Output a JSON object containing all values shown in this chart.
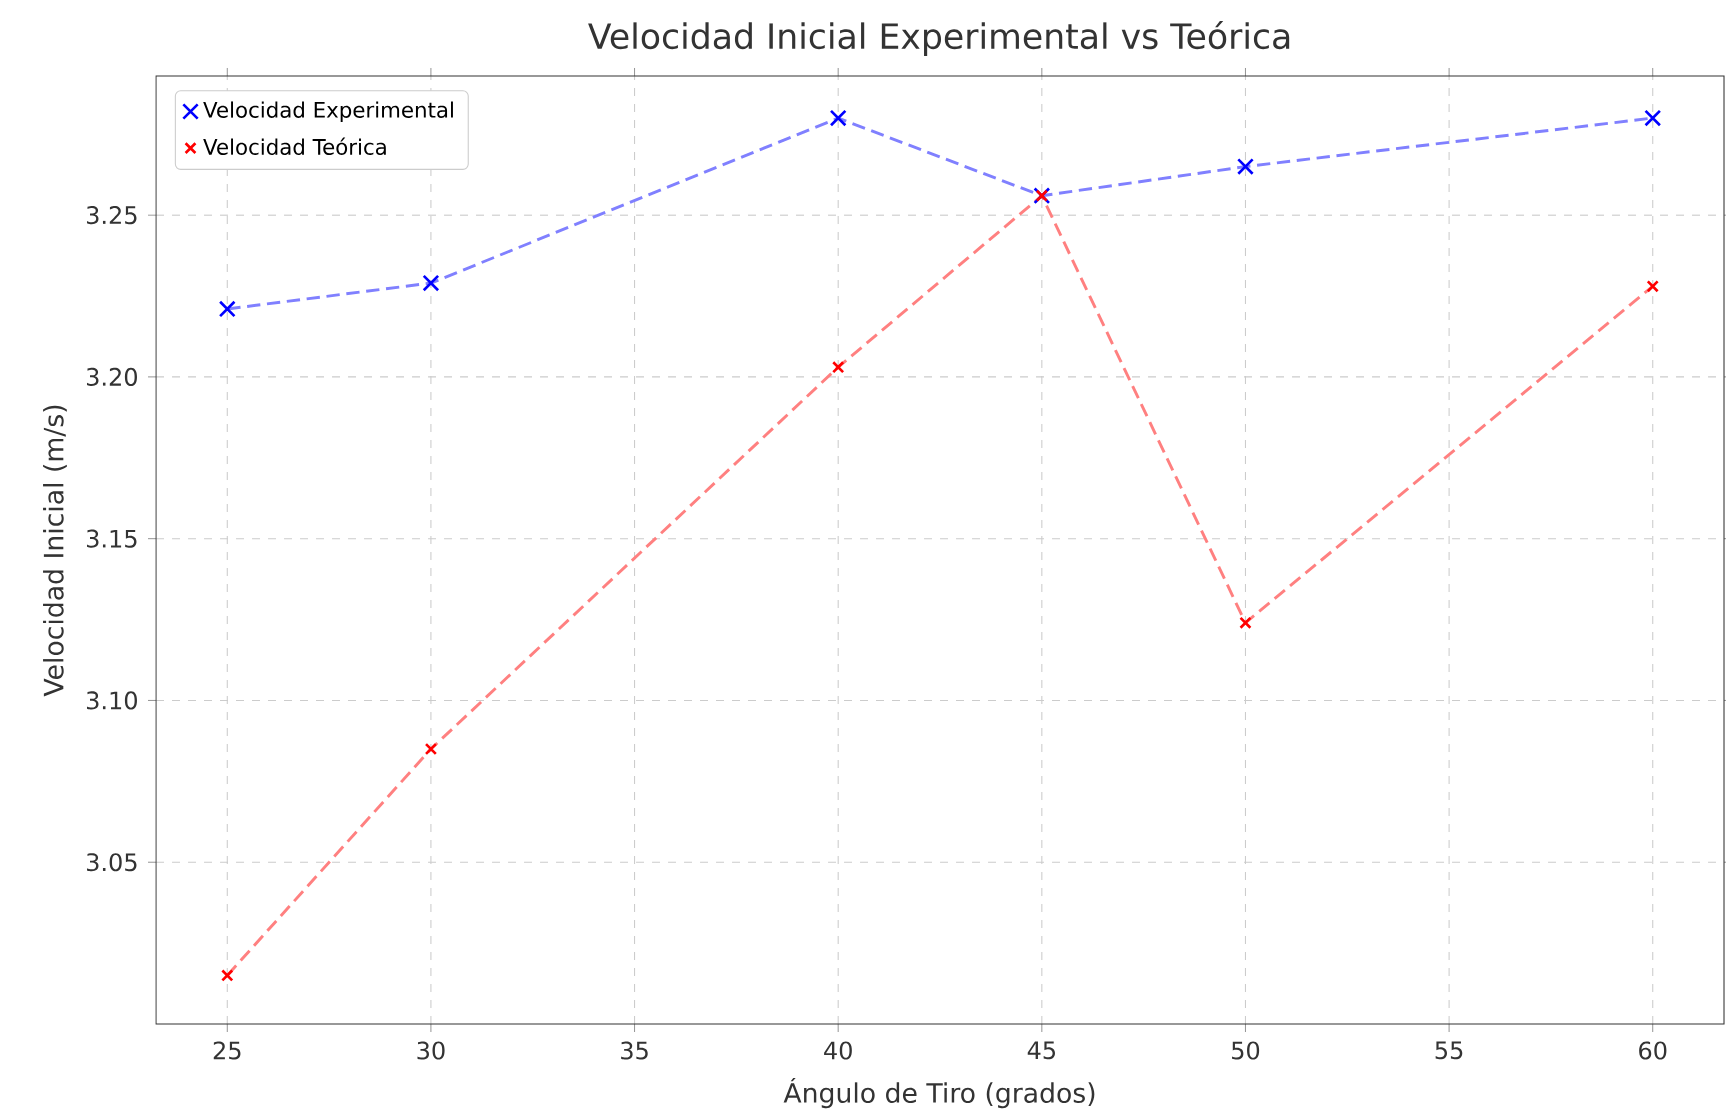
{
  "chart_data": {
    "type": "line",
    "title": "Velocidad Inicial Experimental vs Teórica",
    "xlabel": "Ángulo de Tiro (grados)",
    "ylabel": "Velocidad Inicial (m/s)",
    "x": [
      25,
      30,
      40,
      45,
      50,
      60
    ],
    "series": [
      {
        "name": "Velocidad Experimental",
        "color": "#0000ff",
        "values": [
          3.221,
          3.229,
          3.28,
          3.256,
          3.265,
          3.28
        ]
      },
      {
        "name": "Velocidad Teórica",
        "color": "#ff0000",
        "values": [
          3.015,
          3.085,
          3.203,
          3.256,
          3.124,
          3.228
        ]
      }
    ],
    "xlim": [
      23.25,
      61.75
    ],
    "ylim": [
      3.0,
      3.293
    ],
    "xticks": [
      25,
      30,
      35,
      40,
      45,
      50,
      55,
      60
    ],
    "yticks": [
      3.05,
      {
        "value": 3.1,
        "label": "3.10"
      },
      3.15,
      {
        "value": 3.2,
        "label": "3.20"
      },
      3.25
    ],
    "grid": true,
    "legend": "top left",
    "marker": "cross",
    "line_style": "dashed"
  }
}
